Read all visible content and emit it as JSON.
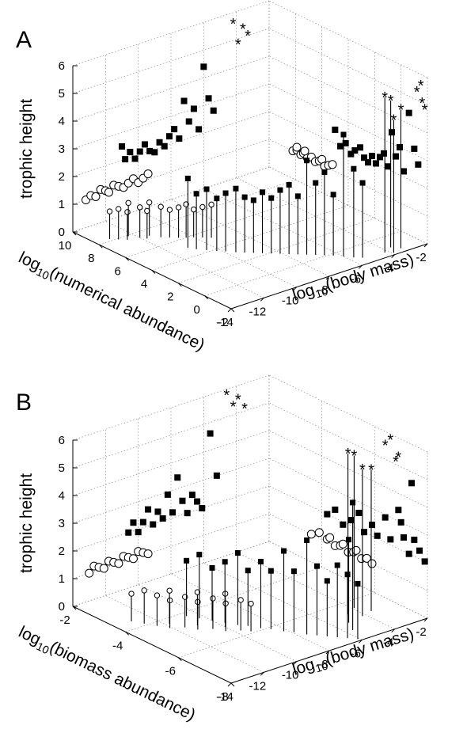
{
  "chart_data": [
    {
      "type": "scatter3d-stem",
      "panel": "A",
      "xlabel": "log10(body mass)",
      "xlabel_main": "log",
      "xlabel_sub": "10",
      "xlabel_rest": "(body mass)",
      "ylabel": "log10(numerical abundance)",
      "ylabel_main": "log",
      "ylabel_sub": "10",
      "ylabel_rest": "(numerical abundance)",
      "zlabel": "trophic height",
      "xlim": [
        -14,
        -2
      ],
      "ylim": [
        -2,
        10
      ],
      "zlim": [
        0,
        6
      ],
      "xticks": [
        "-14",
        "-12",
        "-10",
        "-8",
        "-6",
        "-4",
        "-2"
      ],
      "yticks": [
        "-2",
        "0",
        "2",
        "4",
        "6",
        "8",
        "10"
      ],
      "zticks": [
        "0",
        "1",
        "2",
        "3",
        "4",
        "5",
        "6"
      ],
      "series": [
        {
          "marker": "circle",
          "points": [
            [
              -13.2,
              8.2,
              1.0
            ],
            [
              -12.9,
              7.9,
              1.1
            ],
            [
              -12.6,
              7.6,
              1.0
            ],
            [
              -12.3,
              7.9,
              1.2
            ],
            [
              -12.0,
              7.4,
              1.1
            ],
            [
              -11.8,
              7.1,
              1.0
            ],
            [
              -11.5,
              7.3,
              1.2
            ],
            [
              -11.2,
              6.8,
              1.1
            ],
            [
              -10.9,
              6.5,
              1.0
            ],
            [
              -10.6,
              6.2,
              1.1
            ],
            [
              -10.3,
              6.0,
              1.2
            ],
            [
              -10.0,
              5.8,
              1.0
            ],
            [
              -9.7,
              5.5,
              1.1
            ],
            [
              -9.4,
              5.2,
              1.2
            ]
          ]
        },
        {
          "marker": "square",
          "points": [
            [
              -11.0,
              5.0,
              2.5
            ],
            [
              -10.8,
              4.6,
              2.0
            ],
            [
              -10.5,
              4.2,
              2.2
            ],
            [
              -10.2,
              3.8,
              1.9
            ],
            [
              -9.9,
              3.5,
              2.1
            ],
            [
              -9.6,
              3.1,
              2.3
            ],
            [
              -9.3,
              2.8,
              2.0
            ],
            [
              -9.0,
              2.5,
              1.9
            ],
            [
              -8.7,
              2.2,
              2.2
            ],
            [
              -8.4,
              1.9,
              2.0
            ],
            [
              -8.1,
              1.6,
              2.3
            ],
            [
              -7.8,
              1.3,
              2.5
            ],
            [
              -7.5,
              1.0,
              2.1
            ],
            [
              -7.2,
              0.7,
              3.4
            ],
            [
              -6.9,
              0.4,
              2.6
            ],
            [
              -6.6,
              0.1,
              3.0
            ],
            [
              -6.3,
              -0.2,
              2.2
            ],
            [
              -6.0,
              -0.6,
              4.4
            ],
            [
              -5.7,
              -1.0,
              3.2
            ],
            [
              -5.4,
              -1.3,
              2.7
            ]
          ]
        },
        {
          "marker": "star",
          "points": [
            [
              -4.2,
              -1.5,
              5.6
            ],
            [
              -3.9,
              -1.8,
              4.8
            ],
            [
              -3.6,
              -1.2,
              5.3
            ],
            [
              -3.3,
              -1.6,
              5.0
            ]
          ]
        }
      ]
    },
    {
      "type": "scatter3d-stem",
      "panel": "B",
      "xlabel": "log10(body mass)",
      "xlabel_main": "log",
      "xlabel_sub": "10",
      "xlabel_rest": "(body mass)",
      "ylabel": "log10(biomass abundance)",
      "ylabel_main": "log",
      "ylabel_sub": "10",
      "ylabel_rest": "(biomass abundance)",
      "zlabel": "trophic height",
      "xlim": [
        -14,
        -2
      ],
      "ylim": [
        -8,
        -2
      ],
      "zlim": [
        0,
        6
      ],
      "xticks": [
        "-14",
        "-12",
        "-10",
        "-8",
        "-6",
        "-4",
        "-2"
      ],
      "yticks": [
        "-8",
        "-6",
        "-4",
        "-2"
      ],
      "zticks": [
        "0",
        "1",
        "2",
        "3",
        "4",
        "5",
        "6"
      ],
      "series": [
        {
          "marker": "circle",
          "points": [
            [
              -13.0,
              -3.6,
              1.0
            ],
            [
              -12.7,
              -3.9,
              1.2
            ],
            [
              -12.4,
              -4.2,
              1.1
            ],
            [
              -12.1,
              -4.5,
              1.0
            ],
            [
              -11.8,
              -4.3,
              1.2
            ],
            [
              -11.5,
              -4.7,
              1.1
            ],
            [
              -11.2,
              -5.0,
              1.0
            ],
            [
              -10.9,
              -4.8,
              1.2
            ],
            [
              -10.6,
              -5.2,
              1.1
            ],
            [
              -10.3,
              -5.5,
              1.0
            ],
            [
              -10.0,
              -5.3,
              1.2
            ],
            [
              -9.7,
              -5.7,
              1.1
            ],
            [
              -9.4,
              -5.9,
              1.0
            ]
          ]
        },
        {
          "marker": "square",
          "points": [
            [
              -10.6,
              -4.2,
              2.0
            ],
            [
              -10.3,
              -4.5,
              2.3
            ],
            [
              -10.0,
              -4.8,
              1.9
            ],
            [
              -9.7,
              -5.1,
              2.2
            ],
            [
              -9.4,
              -5.4,
              2.6
            ],
            [
              -9.1,
              -5.6,
              2.0
            ],
            [
              -8.8,
              -5.9,
              2.4
            ],
            [
              -8.5,
              -6.1,
              2.1
            ],
            [
              -8.2,
              -6.4,
              2.9
            ],
            [
              -7.9,
              -6.6,
              2.2
            ],
            [
              -7.6,
              -6.9,
              3.4
            ],
            [
              -7.3,
              -7.1,
              2.5
            ],
            [
              -7.0,
              -7.3,
              2.0
            ],
            [
              -6.7,
              -7.5,
              2.6
            ],
            [
              -6.4,
              -7.7,
              2.3
            ],
            [
              -6.1,
              -7.9,
              2.0
            ],
            [
              -5.6,
              -7.4,
              4.6
            ],
            [
              -5.2,
              -7.0,
              3.0
            ]
          ]
        },
        {
          "marker": "star",
          "points": [
            [
              -4.6,
              -6.6,
              5.8
            ],
            [
              -4.2,
              -6.9,
              5.3
            ],
            [
              -3.9,
              -6.4,
              5.5
            ],
            [
              -3.5,
              -6.8,
              5.1
            ]
          ]
        }
      ]
    }
  ]
}
